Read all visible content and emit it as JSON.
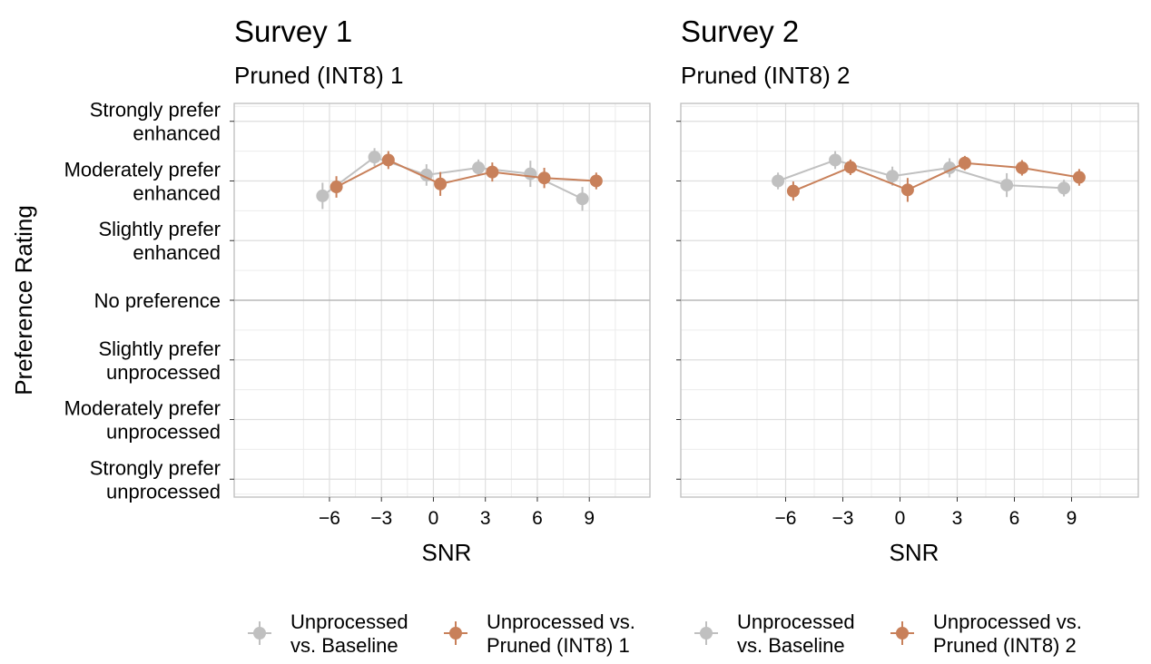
{
  "shared": {
    "y_title": "Preference Rating",
    "y_tick_labels": [
      [
        "Strongly prefer",
        "enhanced"
      ],
      [
        "Moderately prefer",
        "enhanced"
      ],
      [
        "Slightly prefer",
        "enhanced"
      ],
      [
        "No preference"
      ],
      [
        "Slightly prefer",
        "unprocessed"
      ],
      [
        "Moderately prefer",
        "unprocessed"
      ],
      [
        "Strongly prefer",
        "unprocessed"
      ]
    ]
  },
  "chart_data": [
    {
      "type": "line",
      "title": "Survey 1",
      "subtitle": "Pruned (INT8) 1",
      "xlabel": "SNR",
      "ylabel": "Preference Rating",
      "x_ticks": [
        -6,
        -3,
        0,
        3,
        6,
        9
      ],
      "x_tick_labels": [
        "−6",
        "−3",
        "0",
        "3",
        "6",
        "9"
      ],
      "xlim": [
        -11.5,
        12.5
      ],
      "ylim": [
        -3.3,
        3.3
      ],
      "grid": true,
      "legend_position": "bottom",
      "series": [
        {
          "name": "Unprocessed vs. Baseline",
          "legend_label": [
            "Unprocessed",
            "vs. Baseline"
          ],
          "color": "#c0c0c0",
          "x": [
            -6,
            -3,
            0,
            3,
            6,
            9
          ],
          "y": [
            1.75,
            2.4,
            2.1,
            2.22,
            2.12,
            1.7
          ],
          "err": [
            0.22,
            0.15,
            0.18,
            0.14,
            0.22,
            0.2
          ]
        },
        {
          "name": "Unprocessed vs. Pruned (INT8) 1",
          "legend_label": [
            "Unprocessed vs.",
            "Pruned (INT8) 1"
          ],
          "color": "#c8805a",
          "x": [
            -6,
            -3,
            0,
            3,
            6,
            9
          ],
          "y": [
            1.9,
            2.35,
            1.95,
            2.15,
            2.05,
            2.0
          ],
          "err": [
            0.18,
            0.15,
            0.2,
            0.16,
            0.17,
            0.14
          ]
        }
      ]
    },
    {
      "type": "line",
      "title": "Survey 2",
      "subtitle": "Pruned (INT8) 2",
      "xlabel": "SNR",
      "ylabel": "",
      "x_ticks": [
        -6,
        -3,
        0,
        3,
        6,
        9
      ],
      "x_tick_labels": [
        "−6",
        "−3",
        "0",
        "3",
        "6",
        "9"
      ],
      "xlim": [
        -11.5,
        12.5
      ],
      "ylim": [
        -3.3,
        3.3
      ],
      "grid": true,
      "legend_position": "bottom",
      "series": [
        {
          "name": "Unprocessed vs. Baseline",
          "legend_label": [
            "Unprocessed",
            "vs. Baseline"
          ],
          "color": "#c0c0c0",
          "x": [
            -6,
            -3,
            0,
            3,
            6,
            9
          ],
          "y": [
            2.0,
            2.35,
            2.08,
            2.22,
            1.93,
            1.88
          ],
          "err": [
            0.14,
            0.15,
            0.16,
            0.16,
            0.2,
            0.14
          ]
        },
        {
          "name": "Unprocessed vs. Pruned (INT8) 2",
          "legend_label": [
            "Unprocessed vs.",
            "Pruned (INT8) 2"
          ],
          "color": "#c8805a",
          "x": [
            -6,
            -3,
            0,
            3,
            6,
            9
          ],
          "y": [
            1.83,
            2.23,
            1.85,
            2.3,
            2.22,
            2.06
          ],
          "err": [
            0.16,
            0.13,
            0.2,
            0.12,
            0.13,
            0.14
          ]
        }
      ]
    }
  ]
}
